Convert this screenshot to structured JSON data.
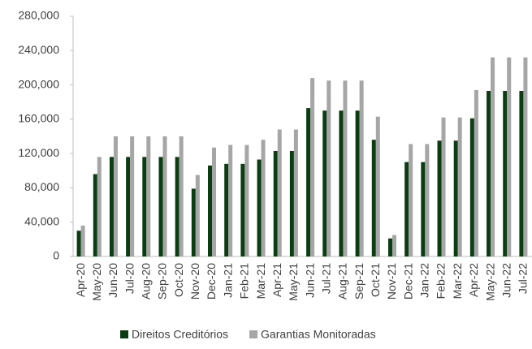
{
  "chart_data": {
    "type": "bar",
    "categories": [
      "Apr-20",
      "May-20",
      "Jun-20",
      "Jul-20",
      "Aug-20",
      "Sep-20",
      "Oct-20",
      "Nov-20",
      "Dec-20",
      "Jan-21",
      "Feb-21",
      "Mar-21",
      "Apr-21",
      "May-21",
      "Jun-21",
      "Jul-21",
      "Aug-21",
      "Sep-21",
      "Oct-21",
      "Nov-21",
      "Dec-21",
      "Jan-22",
      "Feb-22",
      "Mar-22",
      "Apr-22",
      "May-22",
      "Jun-22",
      "Jul-22"
    ],
    "series": [
      {
        "name": "Direitos Creditórios",
        "color": "#0b3d12",
        "values": [
          30000,
          96000,
          116000,
          116000,
          116000,
          116000,
          116000,
          79000,
          106000,
          108000,
          108000,
          113000,
          123000,
          123000,
          173000,
          170000,
          170000,
          170000,
          136000,
          21000,
          110000,
          110000,
          135000,
          135000,
          161000,
          193000,
          193000,
          193000
        ]
      },
      {
        "name": "Garantias Monitoradas",
        "color": "#a6a6a6",
        "values": [
          36000,
          116000,
          140000,
          140000,
          140000,
          140000,
          140000,
          95000,
          127000,
          130000,
          130000,
          136000,
          148000,
          148000,
          208000,
          205000,
          205000,
          205000,
          163000,
          25000,
          131000,
          131000,
          162000,
          162000,
          194000,
          232000,
          232000,
          232000
        ]
      }
    ],
    "ylim": [
      0,
      280000
    ],
    "yticks": [
      0,
      {
        "value": 40000,
        "label": "40,000"
      },
      {
        "value": 80000,
        "label": "80,000"
      },
      {
        "value": 120000,
        "label": "120,000"
      },
      {
        "value": 160000,
        "label": "160,000"
      },
      {
        "value": 200000,
        "label": "200,000"
      },
      {
        "value": 240000,
        "label": "240,000"
      },
      {
        "value": 280000,
        "label": "280,000"
      }
    ],
    "legend": "bottom"
  }
}
